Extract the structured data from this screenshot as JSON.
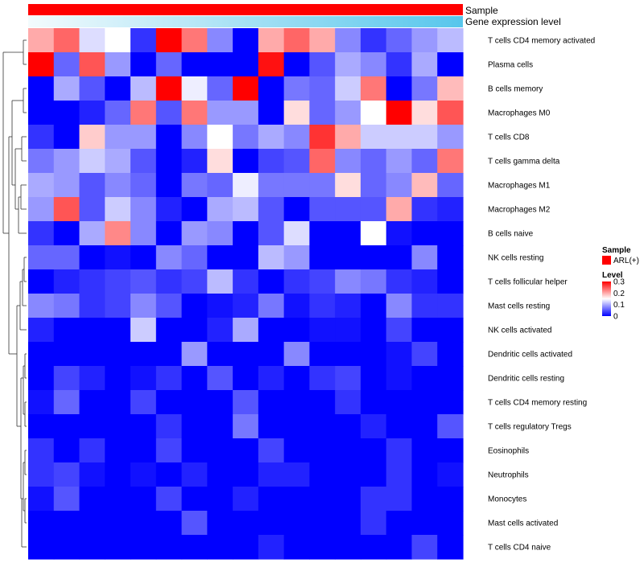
{
  "chart_data": {
    "type": "heatmap",
    "annotations": {
      "sample_label": "Sample",
      "gene_label": "Gene expression level",
      "sample_color": "#ff0000",
      "gene_gradient": [
        "#f3fbfd",
        "#57c6ec"
      ]
    },
    "rows": [
      "T cells CD4 memory activated",
      "Plasma cells",
      "B cells memory",
      "Macrophages M0",
      "T cells CD8",
      "T cells gamma delta",
      "Macrophages M1",
      "Macrophages M2",
      "B cells naive",
      "NK cells resting",
      "T cells follicular helper",
      "Mast cells resting",
      "NK cells activated",
      "Dendritic cells activated",
      "Dendritic cells resting",
      "T cells CD4 memory resting",
      "T cells regulatory  Tregs",
      "Eosinophils",
      "Neutrophils",
      "Monocytes",
      "Mast cells activated",
      "T cells CD4 naive"
    ],
    "values": [
      [
        0.2,
        0.24,
        0.13,
        0.15,
        0.03,
        0.3,
        0.23,
        0.08,
        0.0,
        0.2,
        0.24,
        0.2,
        0.08,
        0.03,
        0.06,
        0.09,
        0.11
      ],
      [
        0.3,
        0.06,
        0.25,
        0.09,
        0.0,
        0.06,
        0.0,
        0.0,
        0.0,
        0.29,
        0.0,
        0.05,
        0.1,
        0.08,
        0.03,
        0.1,
        0.0
      ],
      [
        0.0,
        0.1,
        0.05,
        0.0,
        0.11,
        0.3,
        0.14,
        0.06,
        0.3,
        0.0,
        0.07,
        0.06,
        0.12,
        0.23,
        0.0,
        0.07,
        0.19
      ],
      [
        0.0,
        0.0,
        0.02,
        0.06,
        0.23,
        0.05,
        0.23,
        0.09,
        0.09,
        0.0,
        0.17,
        0.06,
        0.09,
        0.15,
        0.3,
        0.17,
        0.25
      ],
      [
        0.03,
        0.0,
        0.18,
        0.09,
        0.09,
        0.0,
        0.08,
        0.15,
        0.07,
        0.1,
        0.08,
        0.27,
        0.2,
        0.12,
        0.12,
        0.12,
        0.09
      ],
      [
        0.07,
        0.09,
        0.12,
        0.1,
        0.05,
        0.0,
        0.02,
        0.17,
        0.0,
        0.04,
        0.05,
        0.24,
        0.08,
        0.06,
        0.09,
        0.06,
        0.23
      ],
      [
        0.1,
        0.09,
        0.05,
        0.08,
        0.06,
        0.0,
        0.07,
        0.06,
        0.14,
        0.07,
        0.07,
        0.07,
        0.17,
        0.06,
        0.08,
        0.19,
        0.06
      ],
      [
        0.09,
        0.25,
        0.05,
        0.12,
        0.08,
        0.02,
        0.0,
        0.1,
        0.11,
        0.05,
        0.0,
        0.05,
        0.05,
        0.05,
        0.2,
        0.03,
        0.02
      ],
      [
        0.03,
        0.0,
        0.1,
        0.22,
        0.08,
        0.0,
        0.09,
        0.08,
        0.0,
        0.05,
        0.13,
        0.0,
        0.0,
        0.15,
        0.01,
        0.0,
        0.0
      ],
      [
        0.06,
        0.06,
        0.0,
        0.01,
        0.0,
        0.08,
        0.06,
        0.0,
        0.0,
        0.11,
        0.09,
        0.0,
        0.0,
        0.0,
        0.0,
        0.08,
        0.0
      ],
      [
        0.0,
        0.02,
        0.03,
        0.04,
        0.05,
        0.03,
        0.04,
        0.11,
        0.03,
        0.0,
        0.03,
        0.04,
        0.08,
        0.07,
        0.03,
        0.02,
        0.0
      ],
      [
        0.08,
        0.07,
        0.03,
        0.04,
        0.08,
        0.05,
        0.0,
        0.01,
        0.02,
        0.07,
        0.01,
        0.03,
        0.02,
        0.0,
        0.08,
        0.03,
        0.03
      ],
      [
        0.02,
        0.0,
        0.0,
        0.0,
        0.12,
        0.0,
        0.0,
        0.02,
        0.1,
        0.0,
        0.0,
        0.01,
        0.01,
        0.0,
        0.04,
        0.0,
        0.0
      ],
      [
        0.0,
        0.0,
        0.0,
        0.0,
        0.0,
        0.0,
        0.09,
        0.0,
        0.0,
        0.0,
        0.08,
        0.0,
        0.0,
        0.0,
        0.01,
        0.04,
        0.0
      ],
      [
        0.0,
        0.04,
        0.02,
        0.0,
        0.01,
        0.03,
        0.0,
        0.05,
        0.0,
        0.02,
        0.0,
        0.03,
        0.04,
        0.0,
        0.01,
        0.0,
        0.0
      ],
      [
        0.01,
        0.06,
        0.0,
        0.0,
        0.04,
        0.0,
        0.0,
        0.0,
        0.05,
        0.0,
        0.0,
        0.0,
        0.03,
        0.0,
        0.0,
        0.0,
        0.0
      ],
      [
        0.0,
        0.0,
        0.0,
        0.0,
        0.0,
        0.03,
        0.0,
        0.0,
        0.07,
        0.0,
        0.0,
        0.0,
        0.0,
        0.02,
        0.0,
        0.0,
        0.05
      ],
      [
        0.03,
        0.0,
        0.03,
        0.0,
        0.0,
        0.04,
        0.0,
        0.0,
        0.0,
        0.04,
        0.0,
        0.0,
        0.0,
        0.0,
        0.03,
        0.0,
        0.0
      ],
      [
        0.03,
        0.04,
        0.01,
        0.0,
        0.01,
        0.0,
        0.02,
        0.0,
        0.0,
        0.02,
        0.02,
        0.0,
        0.0,
        0.0,
        0.03,
        0.0,
        0.01
      ],
      [
        0.01,
        0.05,
        0.0,
        0.0,
        0.0,
        0.04,
        0.0,
        0.0,
        0.02,
        0.0,
        0.0,
        0.0,
        0.0,
        0.03,
        0.03,
        0.0,
        0.0
      ],
      [
        0.0,
        0.0,
        0.0,
        0.0,
        0.0,
        0.0,
        0.05,
        0.0,
        0.0,
        0.0,
        0.0,
        0.0,
        0.0,
        0.03,
        0.0,
        0.0,
        0.0
      ],
      [
        0.0,
        0.0,
        0.0,
        0.0,
        0.0,
        0.0,
        0.0,
        0.0,
        0.0,
        0.02,
        0.0,
        0.0,
        0.0,
        0.0,
        0.0,
        0.04,
        0.0
      ]
    ],
    "color_scale": {
      "min": 0,
      "mid": 0.15,
      "max": 0.3,
      "colors": [
        "#0000ff",
        "#ffffff",
        "#ff0000"
      ]
    },
    "legend": {
      "sample_title": "Sample",
      "sample_entry": "ARL(+)",
      "level_title": "Level",
      "ticks": [
        {
          "value": 0.3,
          "label": "0.3"
        },
        {
          "value": 0.2,
          "label": "0.2"
        },
        {
          "value": 0.1,
          "label": "0.1"
        },
        {
          "value": 0,
          "label": "0"
        }
      ]
    }
  }
}
